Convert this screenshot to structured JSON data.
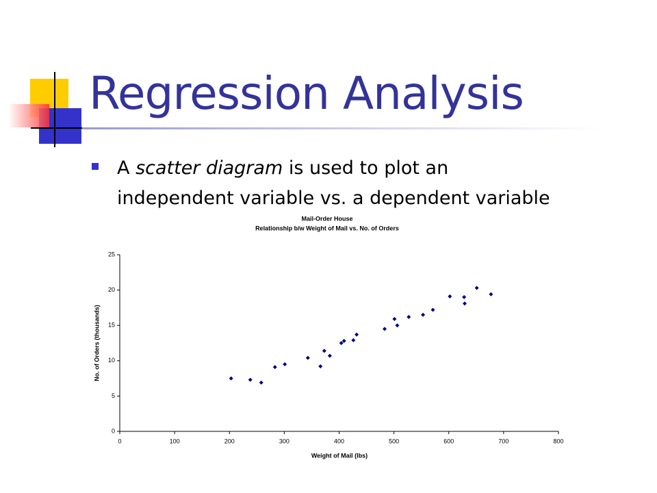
{
  "slide": {
    "title": "Regression Analysis",
    "bullet": [
      "A ",
      "scatter diagram",
      " is used to plot an independent variable vs. a dependent variable"
    ]
  },
  "chart_data": {
    "type": "scatter",
    "title": "Mail-Order House",
    "subtitle": "Relationship b/w Weight of Mail vs. No. of Orders",
    "x_label": "Weight of Mail (lbs)",
    "y_label": "No. of Orders (thousands)",
    "color": "#000080",
    "x": [
      203,
      238,
      258,
      283,
      301,
      343,
      366,
      373,
      383,
      404,
      409,
      426,
      432,
      483,
      501,
      506,
      527,
      553,
      571,
      602,
      628,
      629,
      651,
      677
    ],
    "values": [
      7.5,
      7.3,
      6.9,
      9.1,
      9.5,
      10.4,
      9.2,
      11.4,
      10.7,
      12.5,
      12.8,
      12.9,
      13.7,
      14.5,
      15.9,
      15.0,
      16.2,
      16.5,
      17.2,
      19.1,
      19.0,
      18.1,
      20.3,
      19.4
    ],
    "xlim": [
      0,
      800
    ],
    "xticks": [
      0,
      100,
      200,
      300,
      400,
      500,
      600,
      700,
      800
    ],
    "ylim": [
      0,
      25
    ],
    "yticks": [
      0,
      5,
      10,
      15,
      20,
      25
    ]
  }
}
